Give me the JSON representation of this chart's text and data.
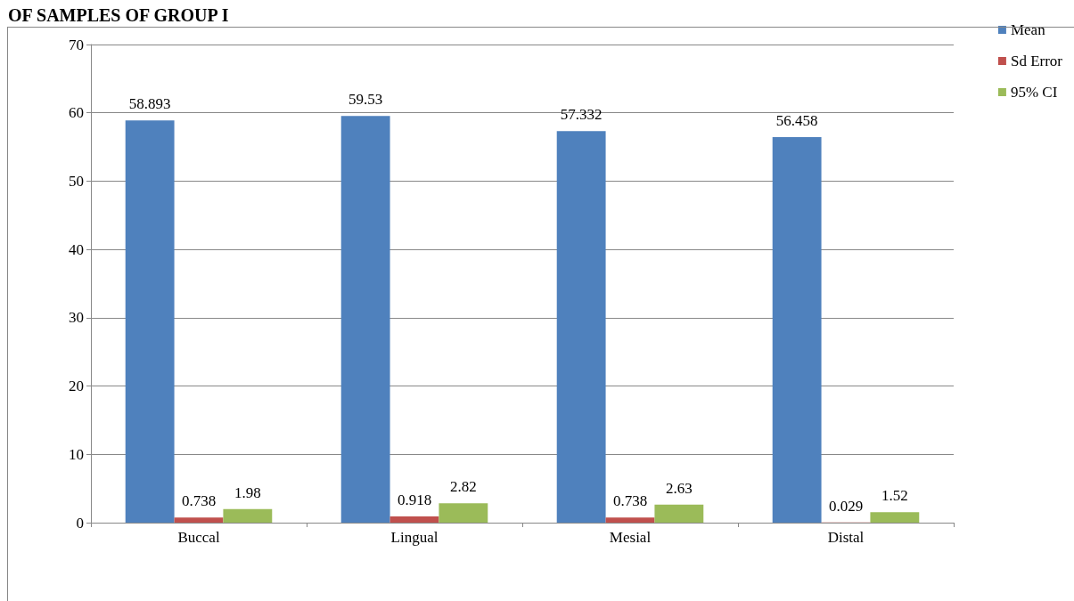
{
  "chart_data": {
    "type": "bar",
    "title": "OF SAMPLES OF GROUP I",
    "categories": [
      "Buccal",
      "Lingual",
      "Mesial",
      "Distal"
    ],
    "series": [
      {
        "name": "Mean",
        "color": "#4f81bd",
        "values": [
          58.893,
          59.53,
          57.332,
          56.458
        ]
      },
      {
        "name": "Sd Error",
        "color": "#c0504d",
        "values": [
          0.738,
          0.918,
          0.738,
          0.029
        ]
      },
      {
        "name": "95% CI",
        "color": "#9bbb59",
        "values": [
          1.98,
          2.82,
          2.63,
          1.52
        ]
      }
    ],
    "ylim": [
      0,
      70
    ],
    "yticks": [
      0,
      10,
      20,
      30,
      40,
      50,
      60,
      70
    ],
    "grid": "y",
    "legend": "top right",
    "data_labels": true
  }
}
